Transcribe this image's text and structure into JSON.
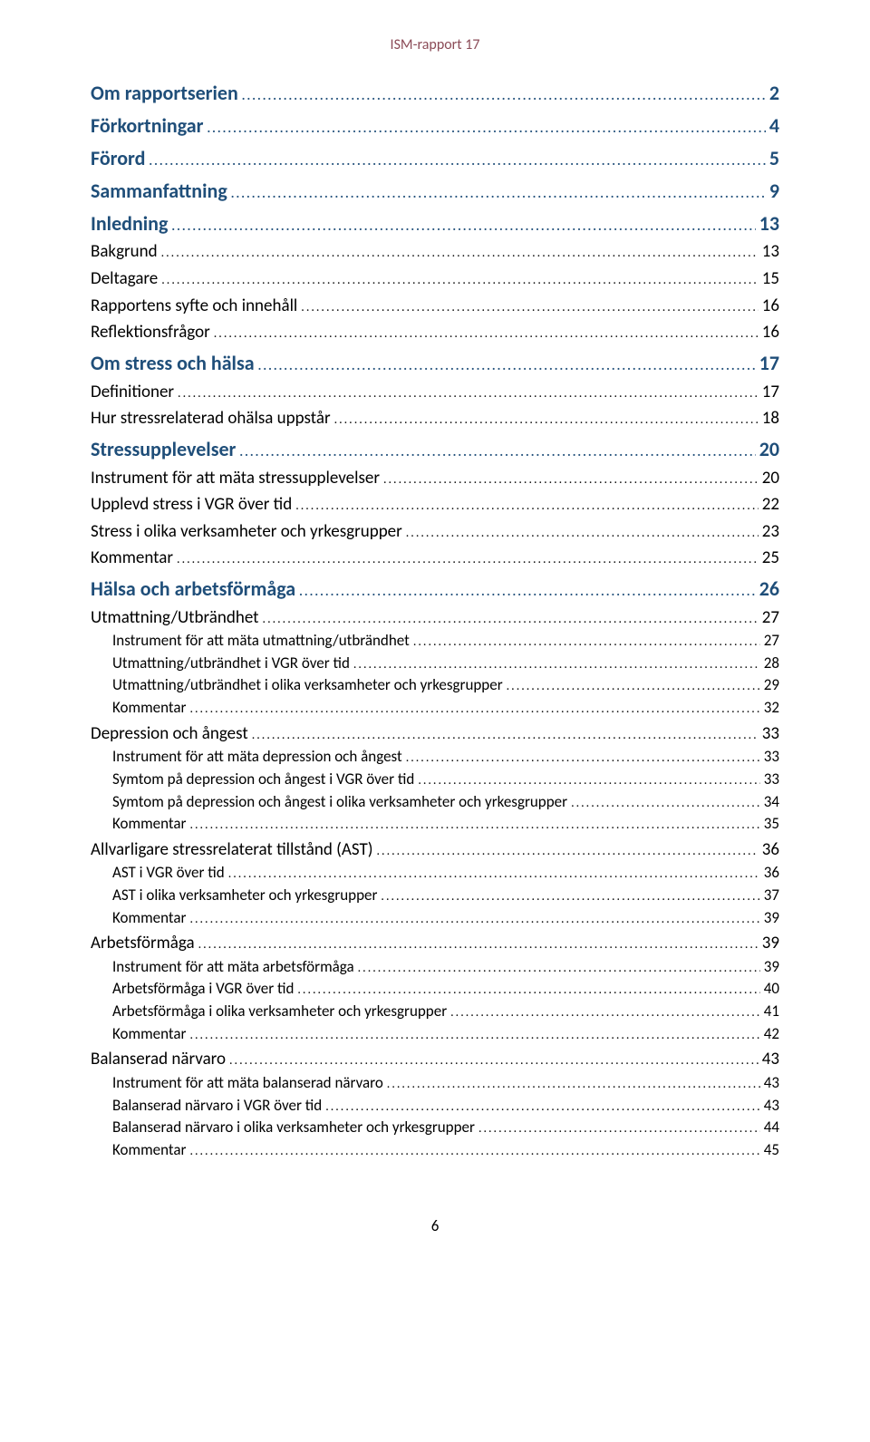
{
  "header_text": "ISM-rapport 17",
  "header_color": "#8b4b57",
  "page_number": "6",
  "level0_blue_color": "#1f4e79",
  "toc": [
    {
      "level": 0,
      "label": "Om rapportserien",
      "page": "2",
      "blue": true
    },
    {
      "level": 0,
      "label": "Förkortningar",
      "page": "4",
      "blue": true
    },
    {
      "level": 0,
      "label": "Förord",
      "page": "5",
      "blue": true
    },
    {
      "level": 0,
      "label": "Sammanfattning",
      "page": "9",
      "blue": true
    },
    {
      "level": 0,
      "label": "Inledning",
      "page": "13",
      "blue": true
    },
    {
      "level": 1,
      "label": "Bakgrund",
      "page": "13"
    },
    {
      "level": 1,
      "label": "Deltagare",
      "page": "15"
    },
    {
      "level": 1,
      "label": "Rapportens syfte och innehåll",
      "page": "16"
    },
    {
      "level": 1,
      "label": "Reflektionsfrågor",
      "page": "16"
    },
    {
      "level": 0,
      "label": "Om stress och hälsa",
      "page": "17",
      "blue": true
    },
    {
      "level": 1,
      "label": "Definitioner",
      "page": "17"
    },
    {
      "level": 1,
      "label": "Hur stressrelaterad ohälsa uppstår",
      "page": "18"
    },
    {
      "level": 0,
      "label": "Stressupplevelser",
      "page": "20",
      "blue": true
    },
    {
      "level": 1,
      "label": "Instrument för att mäta stressupplevelser",
      "page": "20"
    },
    {
      "level": 1,
      "label": "Upplevd stress i VGR över tid",
      "page": "22"
    },
    {
      "level": 1,
      "label": "Stress i olika verksamheter och yrkesgrupper",
      "page": "23"
    },
    {
      "level": 1,
      "label": "Kommentar",
      "page": "25"
    },
    {
      "level": 0,
      "label": "Hälsa och arbetsförmåga",
      "page": "26",
      "blue": true
    },
    {
      "level": 1,
      "label": "Utmattning/Utbrändhet",
      "page": "27"
    },
    {
      "level": 2,
      "label": "Instrument för att mäta utmattning/utbrändhet",
      "page": "27"
    },
    {
      "level": 2,
      "label": "Utmattning/utbrändhet i VGR över tid",
      "page": "28"
    },
    {
      "level": 2,
      "label": "Utmattning/utbrändhet i olika verksamheter och yrkesgrupper",
      "page": "29"
    },
    {
      "level": 2,
      "label": "Kommentar",
      "page": "32"
    },
    {
      "level": 1,
      "label": "Depression och ångest",
      "page": "33"
    },
    {
      "level": 2,
      "label": "Instrument för att mäta depression och ångest",
      "page": "33"
    },
    {
      "level": 2,
      "label": "Symtom på depression och ångest i VGR över tid",
      "page": "33"
    },
    {
      "level": 2,
      "label": "Symtom på depression och ångest i olika verksamheter och yrkesgrupper",
      "page": "34"
    },
    {
      "level": 2,
      "label": "Kommentar",
      "page": "35"
    },
    {
      "level": 1,
      "label": "Allvarligare stressrelaterat tillstånd (AST)",
      "page": "36"
    },
    {
      "level": 2,
      "label": "AST i VGR över tid",
      "page": "36"
    },
    {
      "level": 2,
      "label": "AST i olika verksamheter och yrkesgrupper",
      "page": "37"
    },
    {
      "level": 2,
      "label": "Kommentar",
      "page": "39"
    },
    {
      "level": 1,
      "label": "Arbetsförmåga",
      "page": "39"
    },
    {
      "level": 2,
      "label": "Instrument för att mäta arbetsförmåga",
      "page": "39"
    },
    {
      "level": 2,
      "label": "Arbetsförmåga i VGR över tid",
      "page": "40"
    },
    {
      "level": 2,
      "label": "Arbetsförmåga i olika verksamheter och yrkesgrupper",
      "page": "41"
    },
    {
      "level": 2,
      "label": "Kommentar",
      "page": "42"
    },
    {
      "level": 1,
      "label": "Balanserad närvaro",
      "page": "43"
    },
    {
      "level": 2,
      "label": "Instrument för att mäta balanserad närvaro",
      "page": "43"
    },
    {
      "level": 2,
      "label": "Balanserad närvaro i VGR över tid",
      "page": "43"
    },
    {
      "level": 2,
      "label": "Balanserad närvaro i olika verksamheter och yrkesgrupper",
      "page": "44"
    },
    {
      "level": 2,
      "label": "Kommentar",
      "page": "45"
    }
  ]
}
